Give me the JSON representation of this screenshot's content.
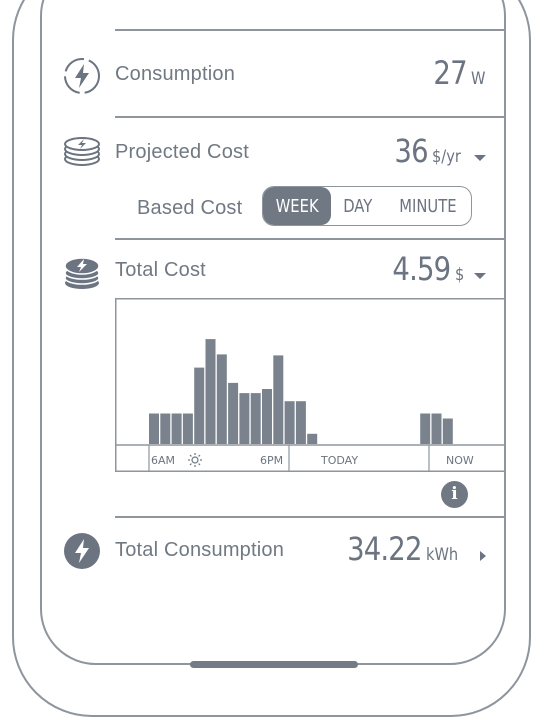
{
  "rows": {
    "consumption": {
      "label": "Consumption",
      "value": "27",
      "unit": "W"
    },
    "projected_cost": {
      "label": "Projected Cost",
      "value": "36",
      "unit": "$/yr"
    },
    "based_cost": {
      "label": "Based Cost",
      "options": [
        "WEEK",
        "DAY",
        "MINUTE"
      ],
      "selected": "WEEK"
    },
    "total_cost": {
      "label": "Total Cost",
      "value": "4.59",
      "unit": "$"
    },
    "total_consumption": {
      "label": "Total Consumption",
      "value": "34.22",
      "unit": "kWh"
    }
  },
  "chart_data": {
    "type": "bar",
    "x_labels": [
      "6AM",
      "6PM",
      "TODAY",
      "NOW"
    ],
    "values": [
      3,
      3,
      3,
      3,
      7.5,
      10.3,
      8.8,
      6,
      5,
      5,
      5.4,
      8.7,
      4.2,
      4.2,
      1,
      0,
      0,
      0,
      0,
      0,
      0,
      0,
      0,
      0,
      3,
      3,
      2.5
    ],
    "ylim": [
      0,
      11
    ],
    "grid": false
  },
  "colors": {
    "accent": "#707983",
    "line": "#8e959c",
    "bar": "#7a838d"
  },
  "icons": [
    "lightning-dashed-circle-icon",
    "coin-stack-small-icon",
    "coin-stack-icon",
    "sun-icon",
    "moon-icon",
    "info-icon",
    "lightning-circle-icon"
  ]
}
